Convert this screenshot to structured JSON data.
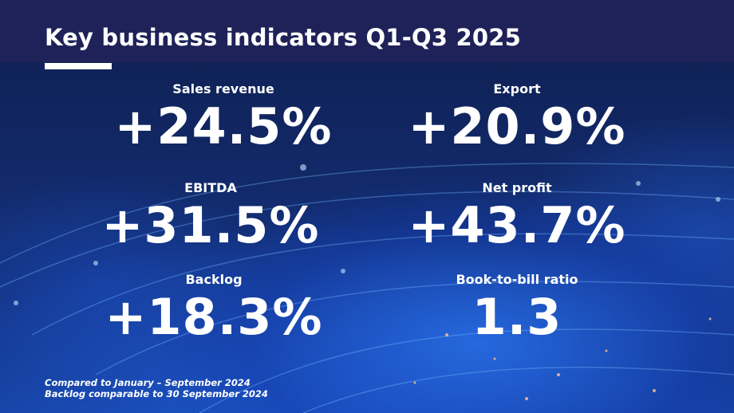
{
  "title": "Key business indicators Q1-Q3 2025",
  "kpis": [
    {
      "label": "Sales revenue",
      "value": "+24.5%"
    },
    {
      "label": "Export",
      "value": "+20.9%"
    },
    {
      "label": "EBITDA",
      "value": "+31.5%"
    },
    {
      "label": "Net profit",
      "value": "+43.7%"
    },
    {
      "label": "Backlog",
      "value": "+18.3%"
    },
    {
      "label": "Book-to-bill ratio",
      "value": "1.3"
    }
  ],
  "footnotes": [
    "Compared to January – September 2024",
    "Backlog comparable to 30 September 2024"
  ],
  "colors": {
    "header": "#1e2258",
    "background": "#122a6a",
    "accent_blue": "#2c6fe0"
  }
}
